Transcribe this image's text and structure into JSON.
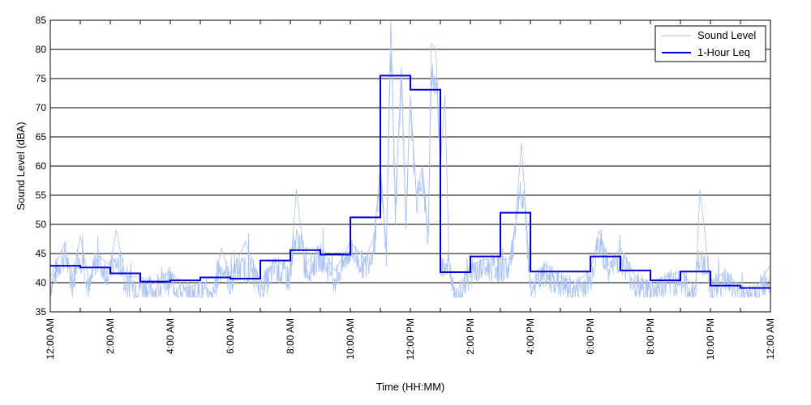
{
  "chart_data": {
    "type": "line",
    "xlabel": "Time (HH:MM)",
    "ylabel": "Sound Level (dBA)",
    "ylim": [
      35,
      85
    ],
    "xlim_hours": [
      0,
      24
    ],
    "y_ticks": [
      35,
      40,
      45,
      50,
      55,
      60,
      65,
      70,
      75,
      80,
      85
    ],
    "x_tick_labels": [
      "12:00 AM",
      "2:00 AM",
      "4:00 AM",
      "6:00 AM",
      "8:00 AM",
      "10:00 AM",
      "12:00 PM",
      "2:00 PM",
      "4:00 PM",
      "6:00 PM",
      "8:00 PM",
      "10:00 PM",
      "12:00 AM"
    ],
    "grid": "horizontal",
    "legend_position": "top-right",
    "colors": {
      "sound_level": "#a9c1f5",
      "leq": "#0000dd"
    },
    "series": [
      {
        "name": "Sound Level",
        "style": "thin noisy line",
        "hour": [
          0,
          0.5,
          0.7,
          1,
          1.3,
          1.5,
          2,
          2.2,
          2.5,
          3,
          3.5,
          4,
          4.5,
          5,
          5.4,
          5.7,
          6,
          6.5,
          7,
          7.5,
          8,
          8.2,
          8.5,
          9,
          9.5,
          10,
          10.5,
          10.8,
          11,
          11.2,
          11.35,
          11.5,
          11.7,
          11.85,
          12,
          12.2,
          12.4,
          12.6,
          12.7,
          12.85,
          13,
          13.15,
          13.3,
          13.5,
          14,
          14.5,
          15,
          15.3,
          15.5,
          15.7,
          16,
          16.5,
          17,
          17.5,
          18,
          18.3,
          18.6,
          19,
          19.5,
          20,
          20.5,
          21,
          21.5,
          21.65,
          22,
          22.5,
          23,
          23.5,
          24
        ],
        "values": [
          41,
          47,
          40,
          48,
          40,
          45,
          43,
          49,
          41,
          41,
          40,
          42,
          39,
          40,
          38,
          46,
          41,
          47,
          40,
          44,
          42,
          56,
          43,
          46,
          42,
          47,
          44,
          48,
          60,
          46,
          85,
          53,
          77,
          50,
          72,
          55,
          60,
          48,
          81,
          80,
          60,
          72,
          42,
          38,
          43,
          44,
          44,
          44,
          50,
          64,
          40,
          43,
          41,
          40,
          42,
          49,
          43,
          46,
          41,
          40,
          41,
          42,
          39,
          56,
          40,
          42,
          39,
          39,
          43
        ]
      },
      {
        "name": "1-Hour Leq",
        "style": "step",
        "hours": [
          0,
          1,
          2,
          3,
          4,
          5,
          6,
          7,
          8,
          9,
          10,
          11,
          12,
          13,
          14,
          15,
          16,
          17,
          18,
          19,
          20,
          21,
          22,
          23
        ],
        "values": [
          42.9,
          42.6,
          41.6,
          40.2,
          40.4,
          40.9,
          40.7,
          43.8,
          45.6,
          44.8,
          51.2,
          75.5,
          73.1,
          41.8,
          44.5,
          52.0,
          41.9,
          41.9,
          44.5,
          42.1,
          40.4,
          41.9,
          39.5,
          39.1
        ]
      }
    ]
  }
}
